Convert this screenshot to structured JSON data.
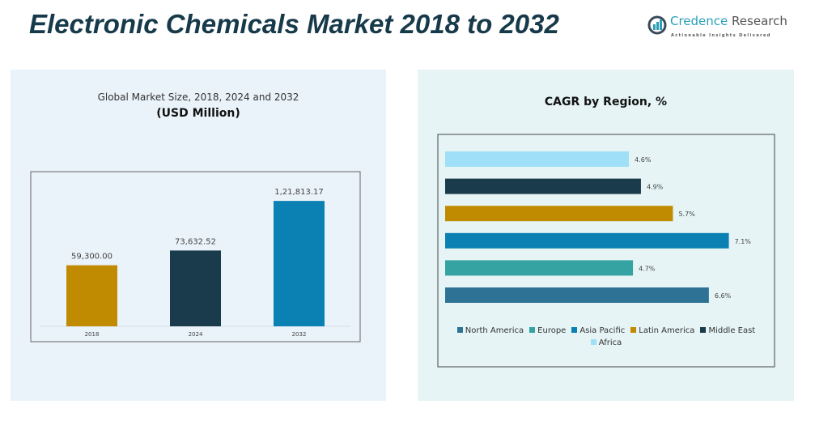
{
  "header": {
    "title": "Electronic Chemicals Market 2018 to 2032",
    "logo_name_a": "Credence",
    "logo_name_b": " Research",
    "logo_tagline": "Actionable Insights Delivered"
  },
  "chart_data": [
    {
      "type": "bar",
      "title": "Global Market Size, 2018, 2024 and 2032",
      "subtitle": "(USD Million)",
      "categories": [
        "2018",
        "2024",
        "2032"
      ],
      "values": [
        59300.0,
        73632.52,
        121813.17
      ],
      "labels": [
        "59,300.00",
        "73,632.52",
        "1,21,813.17"
      ],
      "colors": [
        "#c08b00",
        "#1a3b4b",
        "#0a80b3"
      ],
      "ylim": [
        0,
        140000
      ],
      "grid": false
    },
    {
      "type": "bar",
      "orientation": "horizontal",
      "title": "CAGR by Region, %",
      "categories": [
        "Africa",
        "Middle East",
        "Latin America",
        "Asia Pacific",
        "Europe",
        "North America"
      ],
      "values": [
        4.6,
        4.9,
        5.7,
        7.1,
        4.7,
        6.6
      ],
      "labels": [
        "4.6%",
        "4.9%",
        "5.7%",
        "7.1%",
        "4.7%",
        "6.6%"
      ],
      "colors": [
        "#9fe0f8",
        "#1a3b4b",
        "#c08b00",
        "#0a80b3",
        "#35a3a1",
        "#2e7396"
      ],
      "xlim": [
        0,
        8
      ],
      "legend_position": "bottom",
      "legend": [
        "North America",
        "Europe",
        "Asia Pacific",
        "Latin America",
        "Middle East",
        "Africa"
      ],
      "legend_colors": [
        "#2e7396",
        "#35a3a1",
        "#0a80b3",
        "#c08b00",
        "#1a3b4b",
        "#9fe0f8"
      ]
    }
  ]
}
